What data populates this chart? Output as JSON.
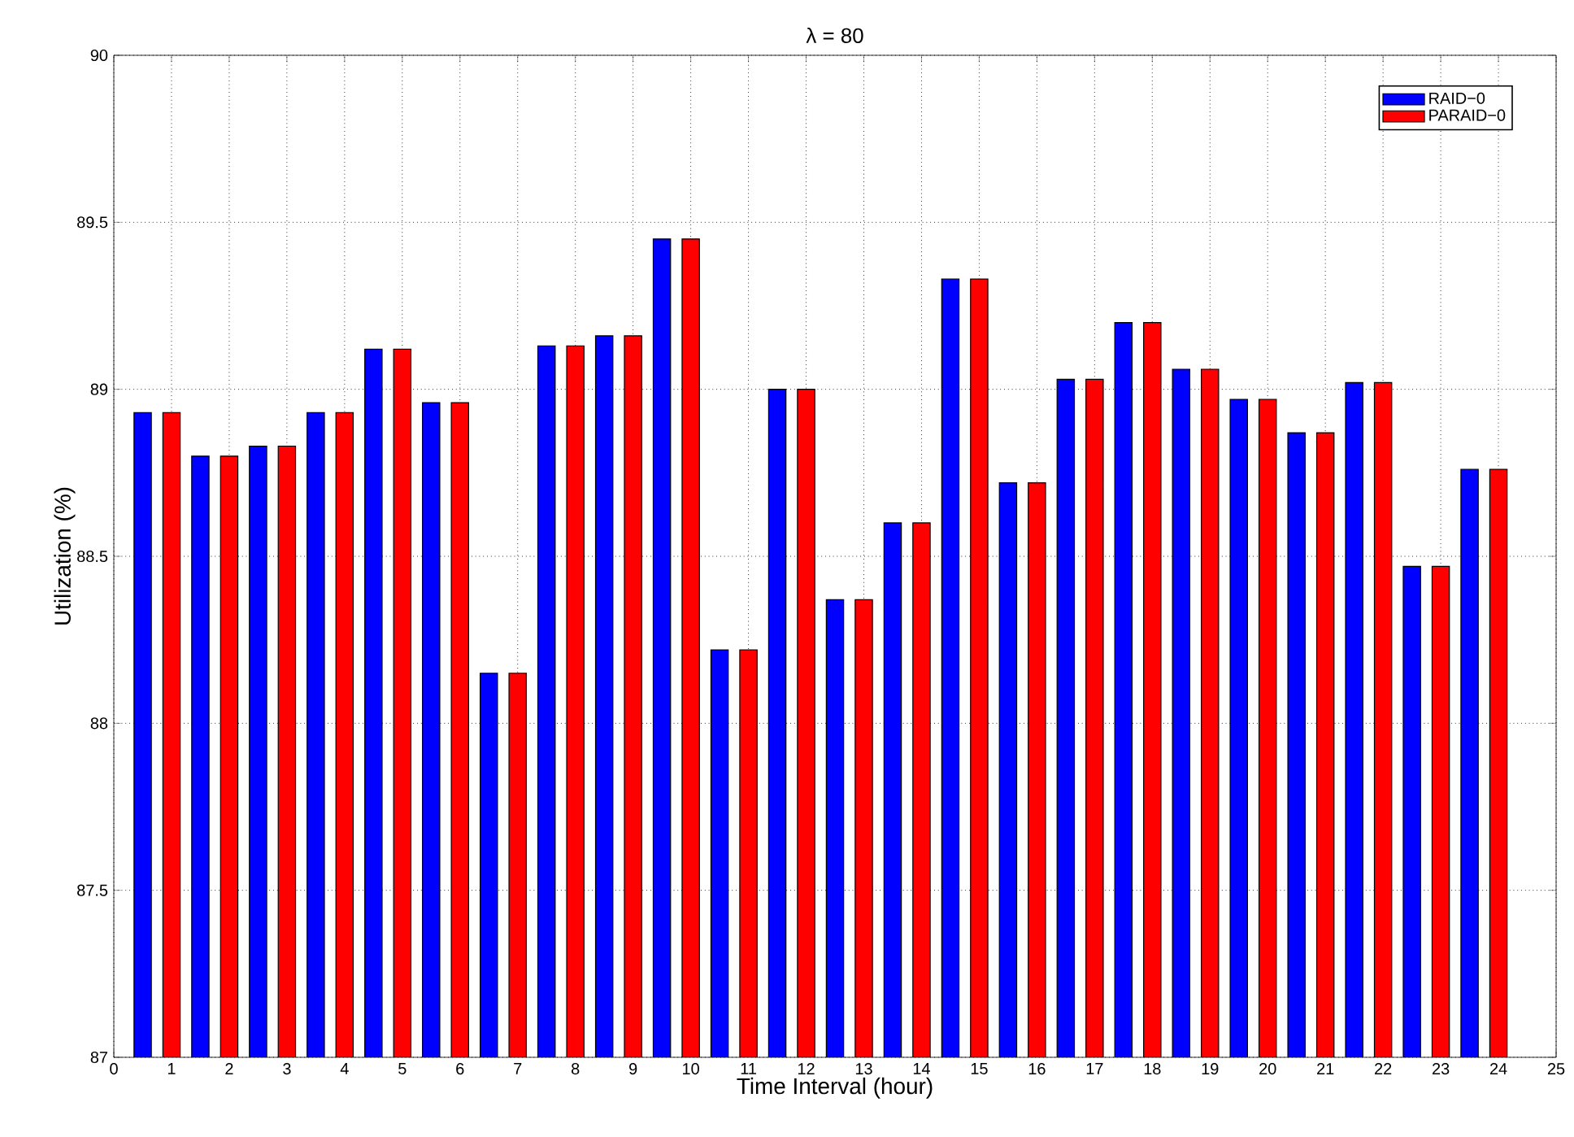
{
  "chart_data": {
    "type": "bar",
    "title": "λ = 80",
    "xlabel": "Time Interval (hour)",
    "ylabel": "Utilization (%)",
    "series": [
      {
        "name": "RAID−0",
        "color": "#0000ff",
        "x": [
          0.5,
          1.5,
          2.5,
          3.5,
          4.5,
          5.5,
          6.5,
          7.5,
          8.5,
          9.5,
          10.5,
          11.5,
          12.5,
          13.5,
          14.5,
          15.5,
          16.5,
          17.5,
          18.5,
          19.5,
          20.5,
          21.5,
          22.5,
          23.5
        ],
        "values": [
          88.93,
          88.8,
          88.83,
          88.93,
          89.12,
          88.96,
          88.15,
          89.13,
          89.16,
          89.45,
          88.22,
          89.0,
          88.37,
          88.6,
          89.33,
          88.72,
          89.03,
          89.2,
          89.06,
          88.97,
          88.87,
          89.02,
          88.47,
          88.76
        ]
      },
      {
        "name": "PARAID−0",
        "color": "#ff0000",
        "x": [
          1,
          2,
          3,
          4,
          5,
          6,
          7,
          8,
          9,
          10,
          11,
          12,
          13,
          14,
          15,
          16,
          17,
          18,
          19,
          20,
          21,
          22,
          23,
          24
        ],
        "values": [
          88.93,
          88.8,
          88.83,
          88.93,
          89.12,
          88.96,
          88.15,
          89.13,
          89.16,
          89.45,
          88.22,
          89.0,
          88.37,
          88.6,
          89.33,
          88.72,
          89.03,
          89.2,
          89.06,
          88.97,
          88.87,
          89.02,
          88.47,
          88.76
        ]
      }
    ],
    "xlim": [
      0,
      25
    ],
    "xticks": [
      0,
      1,
      2,
      3,
      4,
      5,
      6,
      7,
      8,
      9,
      10,
      11,
      12,
      13,
      14,
      15,
      16,
      17,
      18,
      19,
      20,
      21,
      22,
      23,
      24,
      25
    ],
    "ylim": [
      87,
      90
    ],
    "yticks": [
      87,
      87.5,
      88,
      88.5,
      89,
      89.5,
      90
    ],
    "grid": true,
    "legend": "top right"
  }
}
